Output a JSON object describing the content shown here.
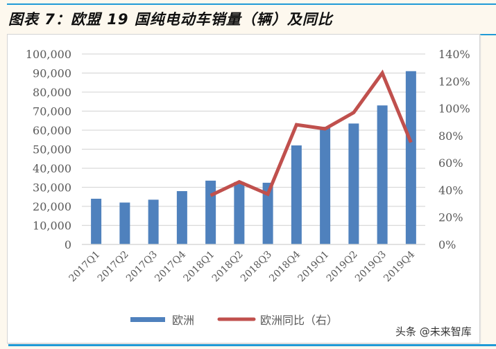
{
  "header": {
    "title": "图表 7：欧盟 19 国纯电动车销量（辆）及同比"
  },
  "watermark": "头条 @未来智库",
  "colors": {
    "bar": "#4f81bd",
    "line": "#c0504d",
    "rule": "#1f9ad6",
    "grid": "#d9d9d9"
  },
  "chart_data": {
    "type": "bar+line",
    "title": "欧盟 19 国纯电动车销量（辆）及同比",
    "categories": [
      "2017Q1",
      "2017Q2",
      "2017Q3",
      "2017Q4",
      "2018Q1",
      "2018Q2",
      "2018Q3",
      "2018Q4",
      "2019Q1",
      "2019Q2",
      "2019Q3",
      "2019Q4"
    ],
    "series": [
      {
        "name": "欧洲",
        "type": "bar",
        "axis": "left",
        "values": [
          24000,
          22000,
          23500,
          28000,
          33500,
          32800,
          32400,
          52000,
          61800,
          63500,
          73000,
          91000
        ]
      },
      {
        "name": "欧洲同比（右）",
        "type": "line",
        "axis": "right",
        "values": [
          null,
          null,
          null,
          null,
          36,
          46,
          37,
          88,
          85,
          97,
          126,
          75
        ]
      }
    ],
    "left_axis": {
      "min": 0,
      "max": 100000,
      "ticks": [
        "0",
        "10,000",
        "20,000",
        "30,000",
        "40,000",
        "50,000",
        "60,000",
        "70,000",
        "80,000",
        "90,000",
        "100,000"
      ]
    },
    "right_axis": {
      "min": 0,
      "max": 140,
      "unit": "%",
      "ticks": [
        "0%",
        "20%",
        "40%",
        "60%",
        "80%",
        "100%",
        "120%",
        "140%"
      ]
    },
    "xlabel": "",
    "ylabel": "",
    "grid": true,
    "legend": {
      "position": "bottom",
      "entries": [
        "欧洲",
        "欧洲同比（右）"
      ]
    }
  }
}
